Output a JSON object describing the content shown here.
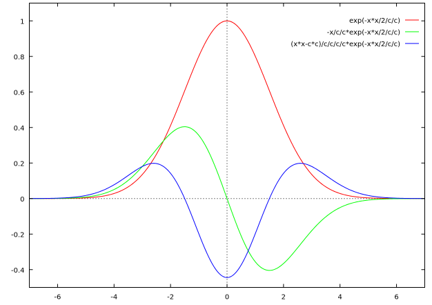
{
  "chart_data": {
    "type": "line",
    "title": "",
    "xlabel": "",
    "ylabel": "",
    "xlim": [
      -7,
      7
    ],
    "ylim": [
      -0.5,
      1.1
    ],
    "xticks": [
      -6,
      -4,
      -2,
      0,
      2,
      4,
      6
    ],
    "xtick_labels": [
      "-6",
      "-4",
      "-2",
      "0",
      "2",
      "4",
      "6"
    ],
    "yticks": [
      -0.4,
      -0.2,
      0,
      0.2,
      0.4,
      0.6,
      0.8,
      1
    ],
    "ytick_labels": [
      "-0.4",
      "-0.2",
      "0",
      "0.2",
      "0.4",
      "0.6",
      "0.8",
      "1"
    ],
    "grid": false,
    "zero_axes": "dotted",
    "legend_placement": "top-right",
    "parameter_c": 1.5,
    "series": [
      {
        "name": "exp(-x*x/2/c/c)",
        "color": "#ff0000",
        "expr": "gauss"
      },
      {
        "name": "-x/c/c*exp(-x*x/2/c/c)",
        "color": "#00ff00",
        "expr": "d1"
      },
      {
        "name": "(x*x-c*c)/c/c/c/c*exp(-x*x/2/c/c)",
        "color": "#0000ff",
        "expr": "d2"
      }
    ]
  }
}
